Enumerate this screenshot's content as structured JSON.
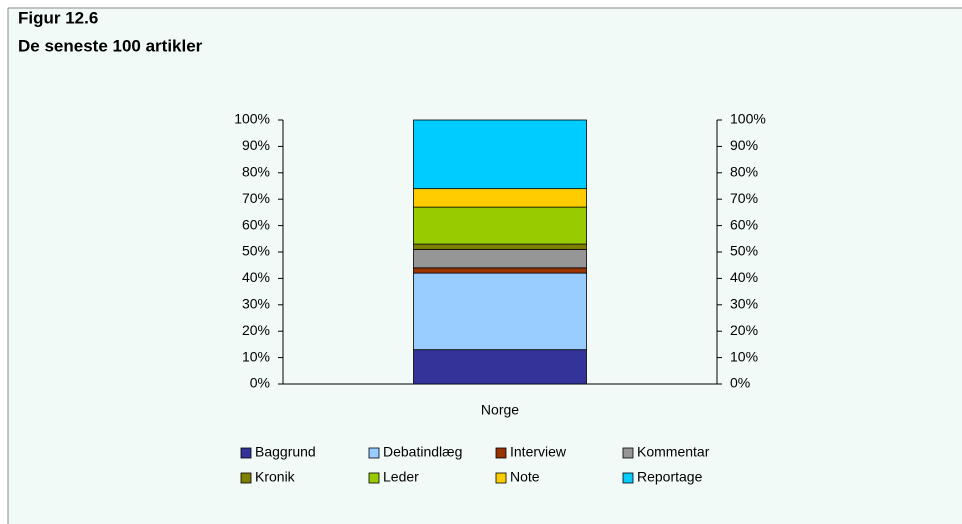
{
  "chart_data": {
    "type": "stacked_bar",
    "title": "Figur 12.6",
    "subtitle": "De seneste 100 artikler",
    "categories": [
      "Norge"
    ],
    "series": [
      {
        "name": "Baggrund",
        "color": "#333399",
        "values": [
          13
        ]
      },
      {
        "name": "Debatindlæg",
        "color": "#99ccff",
        "values": [
          29
        ]
      },
      {
        "name": "Interview",
        "color": "#993300",
        "values": [
          2
        ]
      },
      {
        "name": "Kommentar",
        "color": "#969696",
        "values": [
          7
        ]
      },
      {
        "name": "Kronik",
        "color": "#808000",
        "values": [
          2
        ]
      },
      {
        "name": "Leder",
        "color": "#99cc00",
        "values": [
          14
        ]
      },
      {
        "name": "Note",
        "color": "#ffcc00",
        "values": [
          7
        ]
      },
      {
        "name": "Reportage",
        "color": "#00ccff",
        "values": [
          26
        ]
      }
    ],
    "ylim": [
      0,
      100
    ],
    "yticks": [
      {
        "value": 0,
        "label": "0%"
      },
      {
        "value": 10,
        "label": "10%"
      },
      {
        "value": 20,
        "label": "20%"
      },
      {
        "value": 30,
        "label": "30%"
      },
      {
        "value": 40,
        "label": "40%"
      },
      {
        "value": 50,
        "label": "50%"
      },
      {
        "value": 60,
        "label": "60%"
      },
      {
        "value": 70,
        "label": "70%"
      },
      {
        "value": 80,
        "label": "80%"
      },
      {
        "value": 90,
        "label": "90%"
      },
      {
        "value": 100,
        "label": "100%"
      }
    ],
    "y2lim": [
      0,
      100
    ],
    "y2ticks": [
      {
        "value": 0,
        "label": "0%"
      },
      {
        "value": 10,
        "label": "10%"
      },
      {
        "value": 20,
        "label": "20%"
      },
      {
        "value": 30,
        "label": "30%"
      },
      {
        "value": 40,
        "label": "40%"
      },
      {
        "value": 50,
        "label": "50%"
      },
      {
        "value": 60,
        "label": "60%"
      },
      {
        "value": 70,
        "label": "70%"
      },
      {
        "value": 80,
        "label": "80%"
      },
      {
        "value": 90,
        "label": "90%"
      },
      {
        "value": 100,
        "label": "100%"
      }
    ],
    "grid": false
  }
}
